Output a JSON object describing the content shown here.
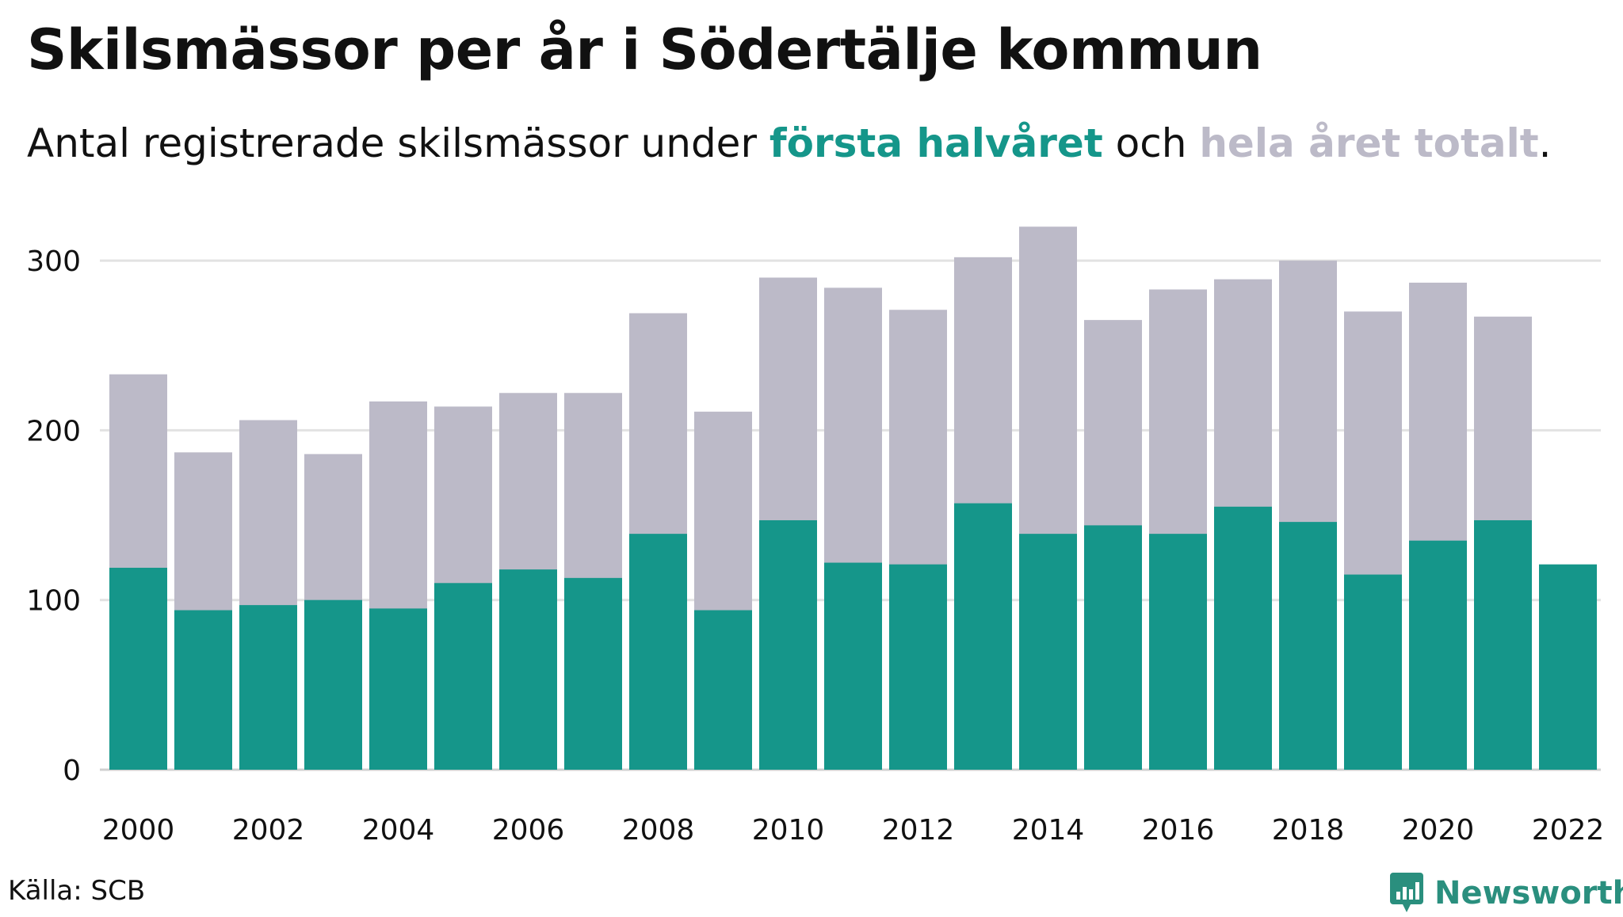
{
  "header": {
    "title": "Skilsmässor per år i Södertälje kommun",
    "subtitle_pre": "Antal registrerade skilsmässor under ",
    "subtitle_first": "första halvåret",
    "subtitle_mid": " och ",
    "subtitle_total": "hela året totalt",
    "subtitle_post": "."
  },
  "footer": {
    "source": "Källa: SCB",
    "brand": "Newsworthy"
  },
  "colors": {
    "first_half": "#15968a",
    "full_year": "#bcbac8",
    "grid": "#e2e2e2",
    "brand": "#2a8f7e"
  },
  "chart_data": {
    "type": "bar",
    "x": [
      2000,
      2001,
      2002,
      2003,
      2004,
      2005,
      2006,
      2007,
      2008,
      2009,
      2010,
      2011,
      2012,
      2013,
      2014,
      2015,
      2016,
      2017,
      2018,
      2019,
      2020,
      2021,
      2022
    ],
    "x_tick_labels": [
      "2000",
      "2002",
      "2004",
      "2006",
      "2008",
      "2010",
      "2012",
      "2014",
      "2016",
      "2018",
      "2020",
      "2022"
    ],
    "y_ticks": [
      0,
      100,
      200,
      300
    ],
    "ylim": [
      0,
      330
    ],
    "grid": true,
    "series": [
      {
        "name": "hela året totalt",
        "values": [
          233,
          187,
          206,
          186,
          217,
          214,
          222,
          222,
          269,
          211,
          290,
          284,
          271,
          302,
          320,
          265,
          283,
          289,
          300,
          270,
          287,
          267,
          null
        ]
      },
      {
        "name": "första halvåret",
        "values": [
          119,
          94,
          97,
          100,
          95,
          110,
          118,
          113,
          139,
          94,
          147,
          122,
          121,
          157,
          139,
          144,
          139,
          155,
          146,
          115,
          135,
          147,
          121
        ]
      }
    ]
  }
}
